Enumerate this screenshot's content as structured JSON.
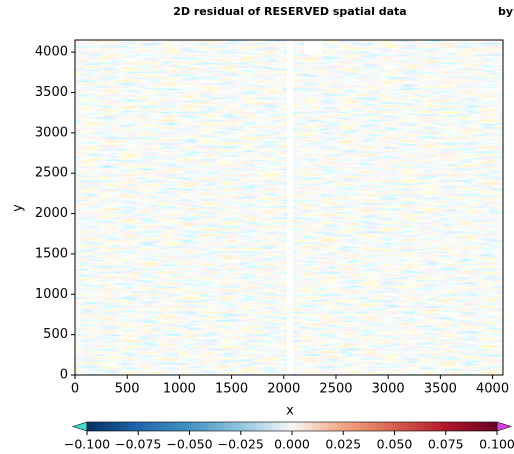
{
  "chart_data": {
    "type": "heatmap",
    "title": "2D residual of RESERVED spatial data",
    "title_extra": "by",
    "x_label": "x",
    "y_label": "y",
    "xlim": [
      0,
      4100
    ],
    "ylim": [
      0,
      4150
    ],
    "xticks": [
      0,
      500,
      1000,
      1500,
      2000,
      2500,
      3000,
      3500,
      4000
    ],
    "yticks": [
      0,
      500,
      1000,
      1500,
      2000,
      2500,
      3000,
      3500,
      4000
    ],
    "clim": [
      -0.1,
      0.1
    ],
    "cticks": [
      {
        "value": -0.1,
        "label": "−0.100"
      },
      {
        "value": -0.075,
        "label": "−0.075"
      },
      {
        "value": -0.05,
        "label": "−0.050"
      },
      {
        "value": -0.025,
        "label": "−0.025"
      },
      {
        "value": 0,
        "label": "0.000"
      },
      {
        "value": 0.025,
        "label": "0.025"
      },
      {
        "value": 0.05,
        "label": "0.050"
      },
      {
        "value": 0.075,
        "label": "0.075"
      },
      {
        "value": 0.1,
        "label": "0.100"
      }
    ],
    "cmap_colors": [
      "#053061",
      "#2166ac",
      "#4393c3",
      "#92c5de",
      "#f7f7f7",
      "#f4a582",
      "#d6604d",
      "#b2182b",
      "#67001f"
    ],
    "extend_colors": [
      "#40e0d0",
      "#e040e0"
    ]
  }
}
